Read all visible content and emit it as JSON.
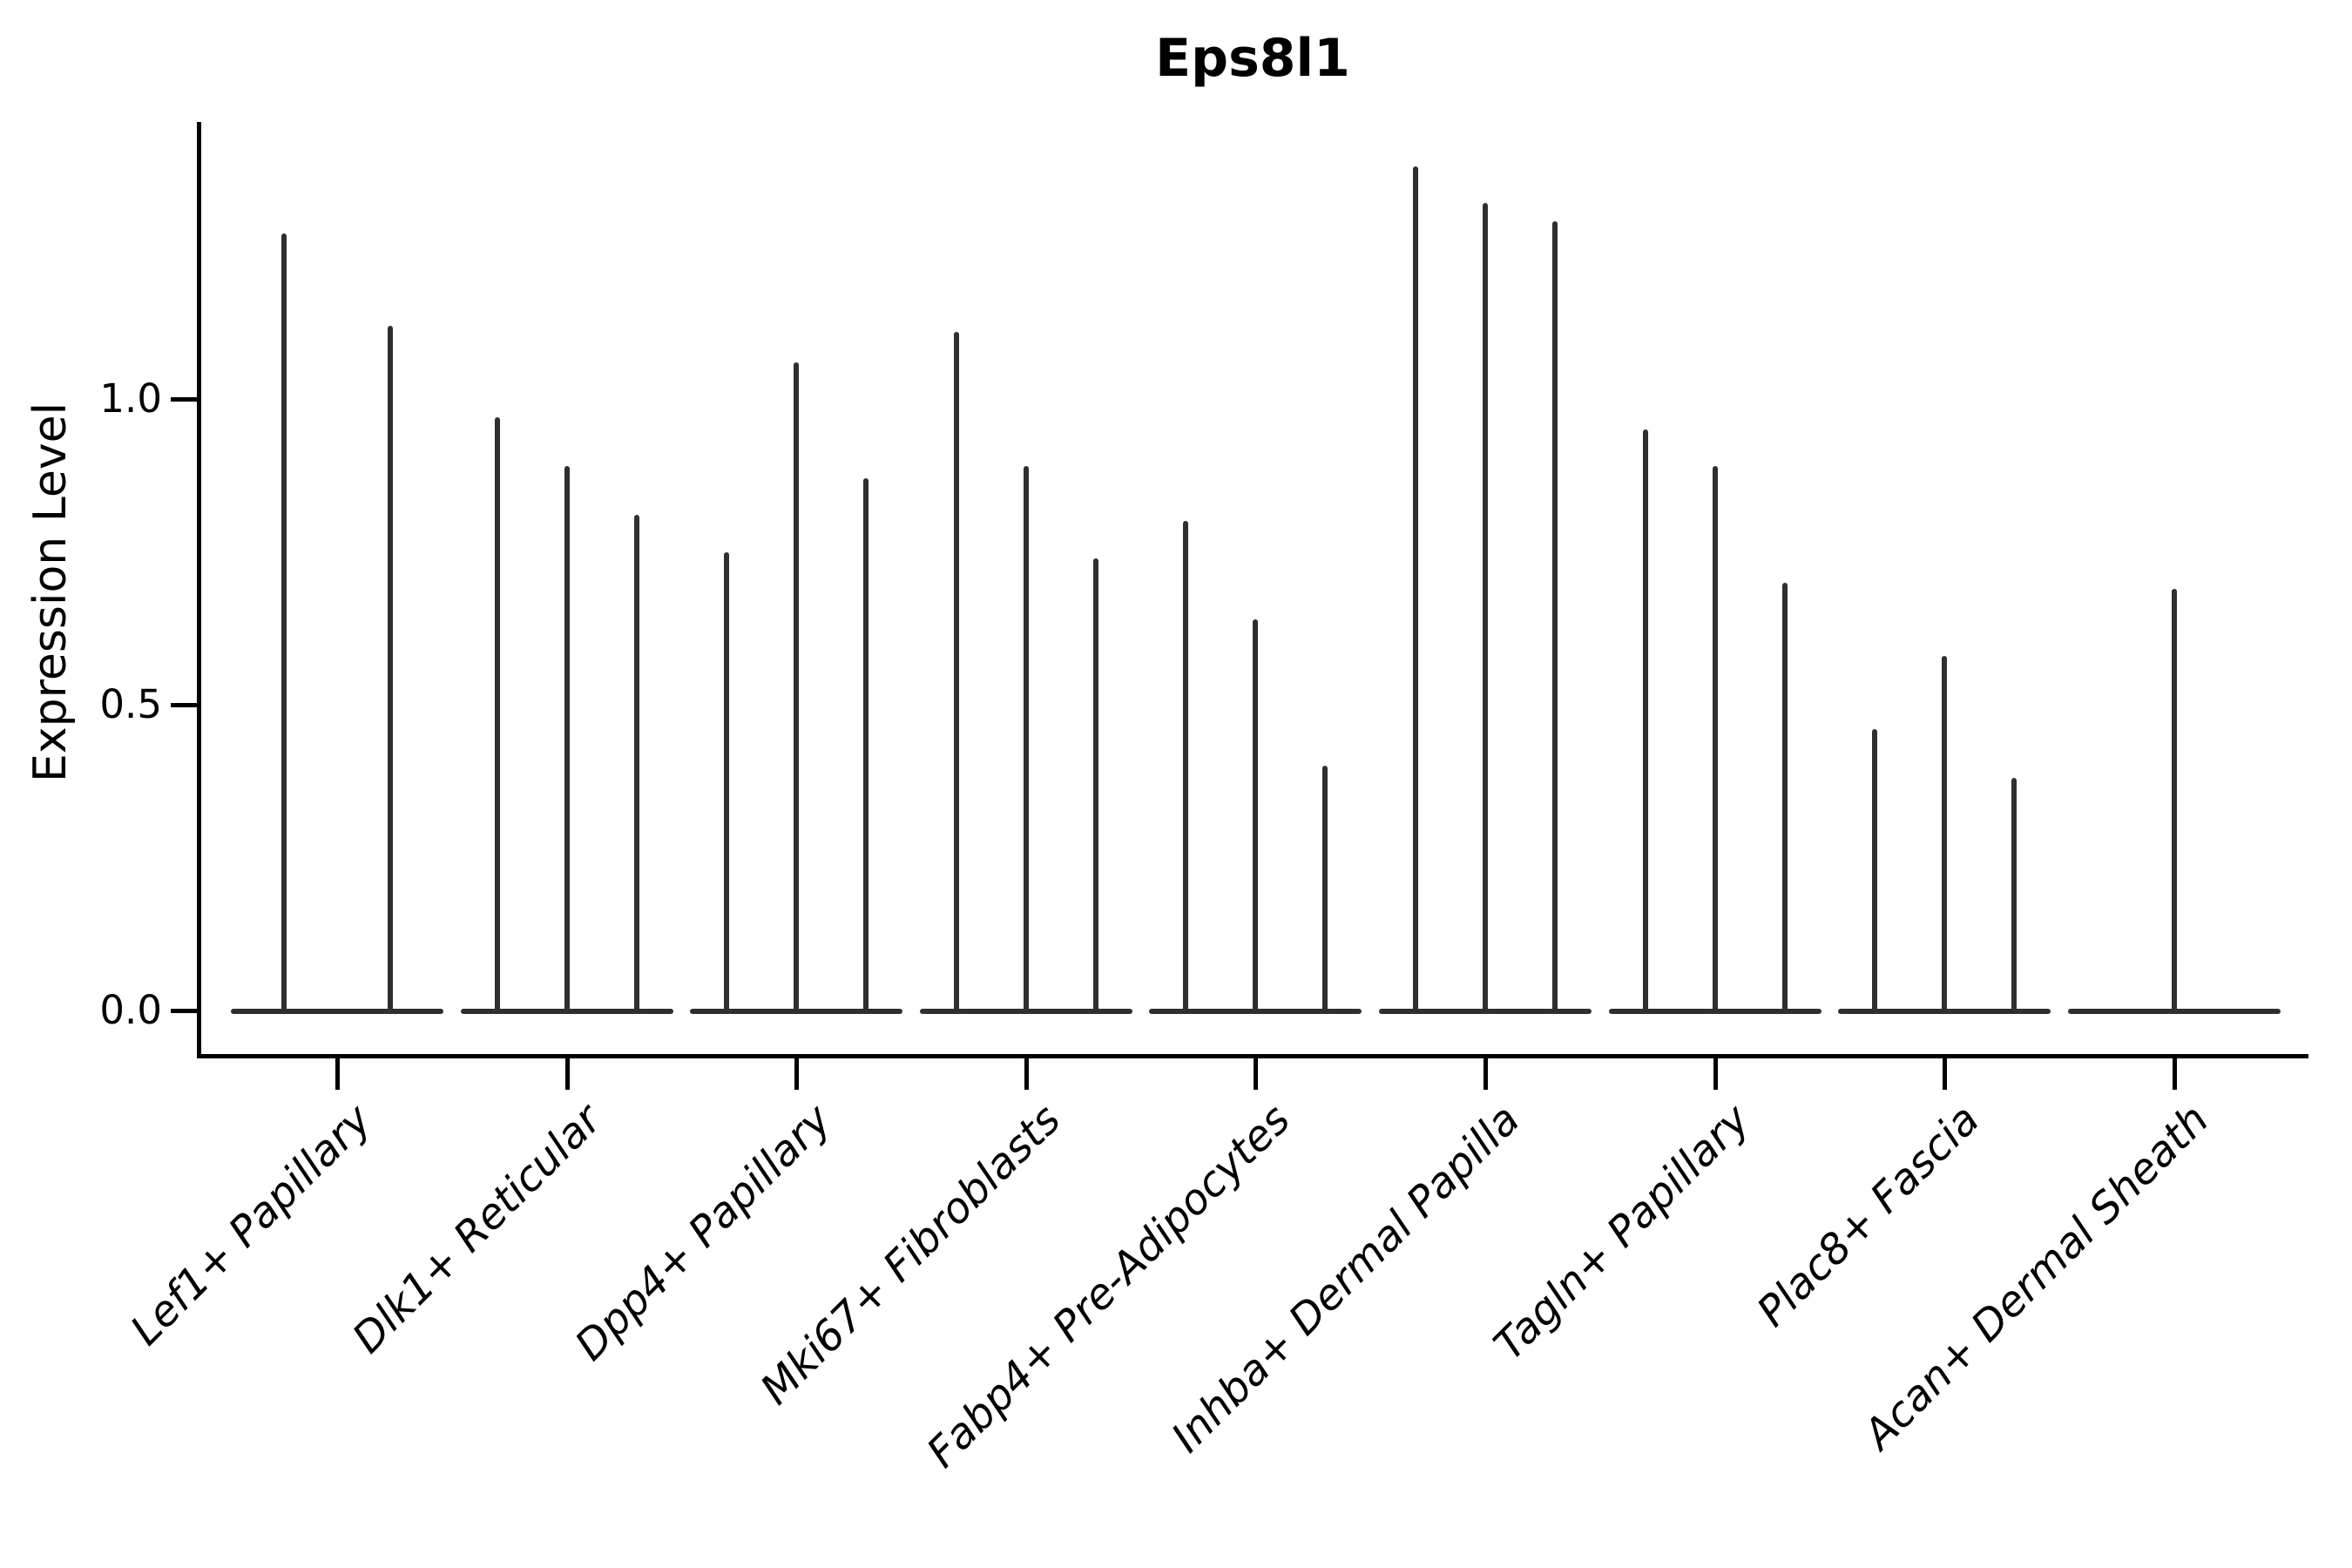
{
  "title": "Eps8l1",
  "y_axis": {
    "label": "Expression Level",
    "tick_labels": [
      "0.0",
      "0.5",
      "1.0"
    ]
  },
  "chart_data": {
    "type": "violin",
    "title": "Eps8l1",
    "ylabel": "Expression Level",
    "xlabel": "",
    "ylim": [
      -0.07,
      1.45
    ],
    "yticks": [
      0.0,
      0.5,
      1.0
    ],
    "grid": false,
    "legend": "none",
    "categories": [
      "Lef1+ Papillary",
      "Dlk1+ Reticular",
      "Dpp4+ Papillary",
      "Mki67+ Fibroblasts",
      "Fabp4+ Pre-Adipocytes",
      "Inhba+ Dermal Papilla",
      "Tagln+ Papillary",
      "Plac8+ Fascia",
      "Acan+ Dermal Sheath"
    ],
    "groups": [
      {
        "category": "Lef1+ Papillary",
        "violin_maxima": [
          1.27,
          1.12
        ]
      },
      {
        "category": "Dlk1+ Reticular",
        "violin_maxima": [
          0.97,
          0.89,
          0.81
        ]
      },
      {
        "category": "Dpp4+ Papillary",
        "violin_maxima": [
          0.75,
          1.06,
          0.87
        ]
      },
      {
        "category": "Mki67+ Fibroblasts",
        "violin_maxima": [
          1.11,
          0.89,
          0.74
        ]
      },
      {
        "category": "Fabp4+ Pre-Adipocytes",
        "violin_maxima": [
          0.8,
          0.64,
          0.4
        ]
      },
      {
        "category": "Inhba+ Dermal Papilla",
        "violin_maxima": [
          1.38,
          1.32,
          1.29
        ]
      },
      {
        "category": "Tagln+ Papillary",
        "violin_maxima": [
          0.95,
          0.89,
          0.7
        ]
      },
      {
        "category": "Plac8+ Fascia",
        "violin_maxima": [
          0.46,
          0.58,
          0.38
        ]
      },
      {
        "category": "Acan+ Dermal Sheath",
        "violin_maxima": [
          0.69
        ]
      }
    ],
    "style": {
      "violin_color": "#2f2f2f",
      "axis_color": "#000000",
      "background": "#ffffff"
    },
    "notes": "Sparse single-cell expression: each violin collapses to a thin vertical spike with a flat density lens at 0"
  }
}
